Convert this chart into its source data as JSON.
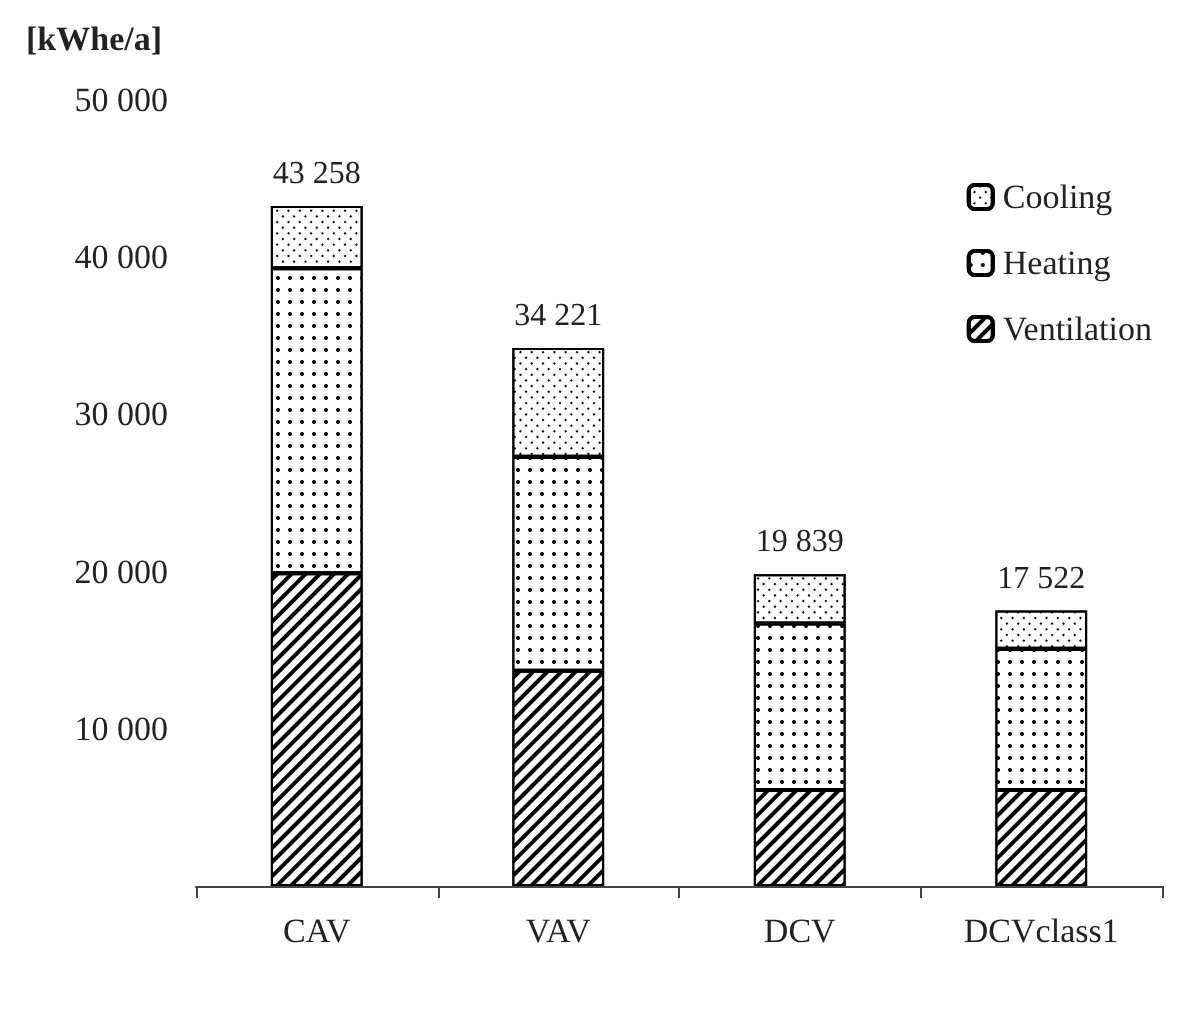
{
  "chart_data": {
    "type": "bar",
    "stacked": true,
    "ylabel": "[kWhe/a]",
    "categories": [
      "CAV",
      "VAV",
      "DCV",
      "DCVclass1"
    ],
    "series": [
      {
        "name": "Ventilation",
        "color": "#ffffff",
        "values": [
          19900,
          13700,
          6100,
          6100
        ]
      },
      {
        "name": "Heating",
        "color": "#ffffff",
        "values": [
          19400,
          13600,
          10600,
          9000
        ]
      },
      {
        "name": "Cooling",
        "color": "#ffffff",
        "values": [
          3958,
          6921,
          3139,
          2422
        ]
      }
    ],
    "totals": [
      "43 258",
      "34 221",
      "19 839",
      "17 522"
    ],
    "ylim": [
      0,
      50000
    ],
    "yticks": [
      {
        "value": 0,
        "label": null
      },
      {
        "value": 10000,
        "label": "10 000"
      },
      {
        "value": 20000,
        "label": "20 000"
      },
      {
        "value": 30000,
        "label": "30 000"
      },
      {
        "value": 40000,
        "label": "40 000"
      },
      {
        "value": 50000,
        "label": "50 000"
      }
    ],
    "grid": false,
    "legend": "top right"
  }
}
